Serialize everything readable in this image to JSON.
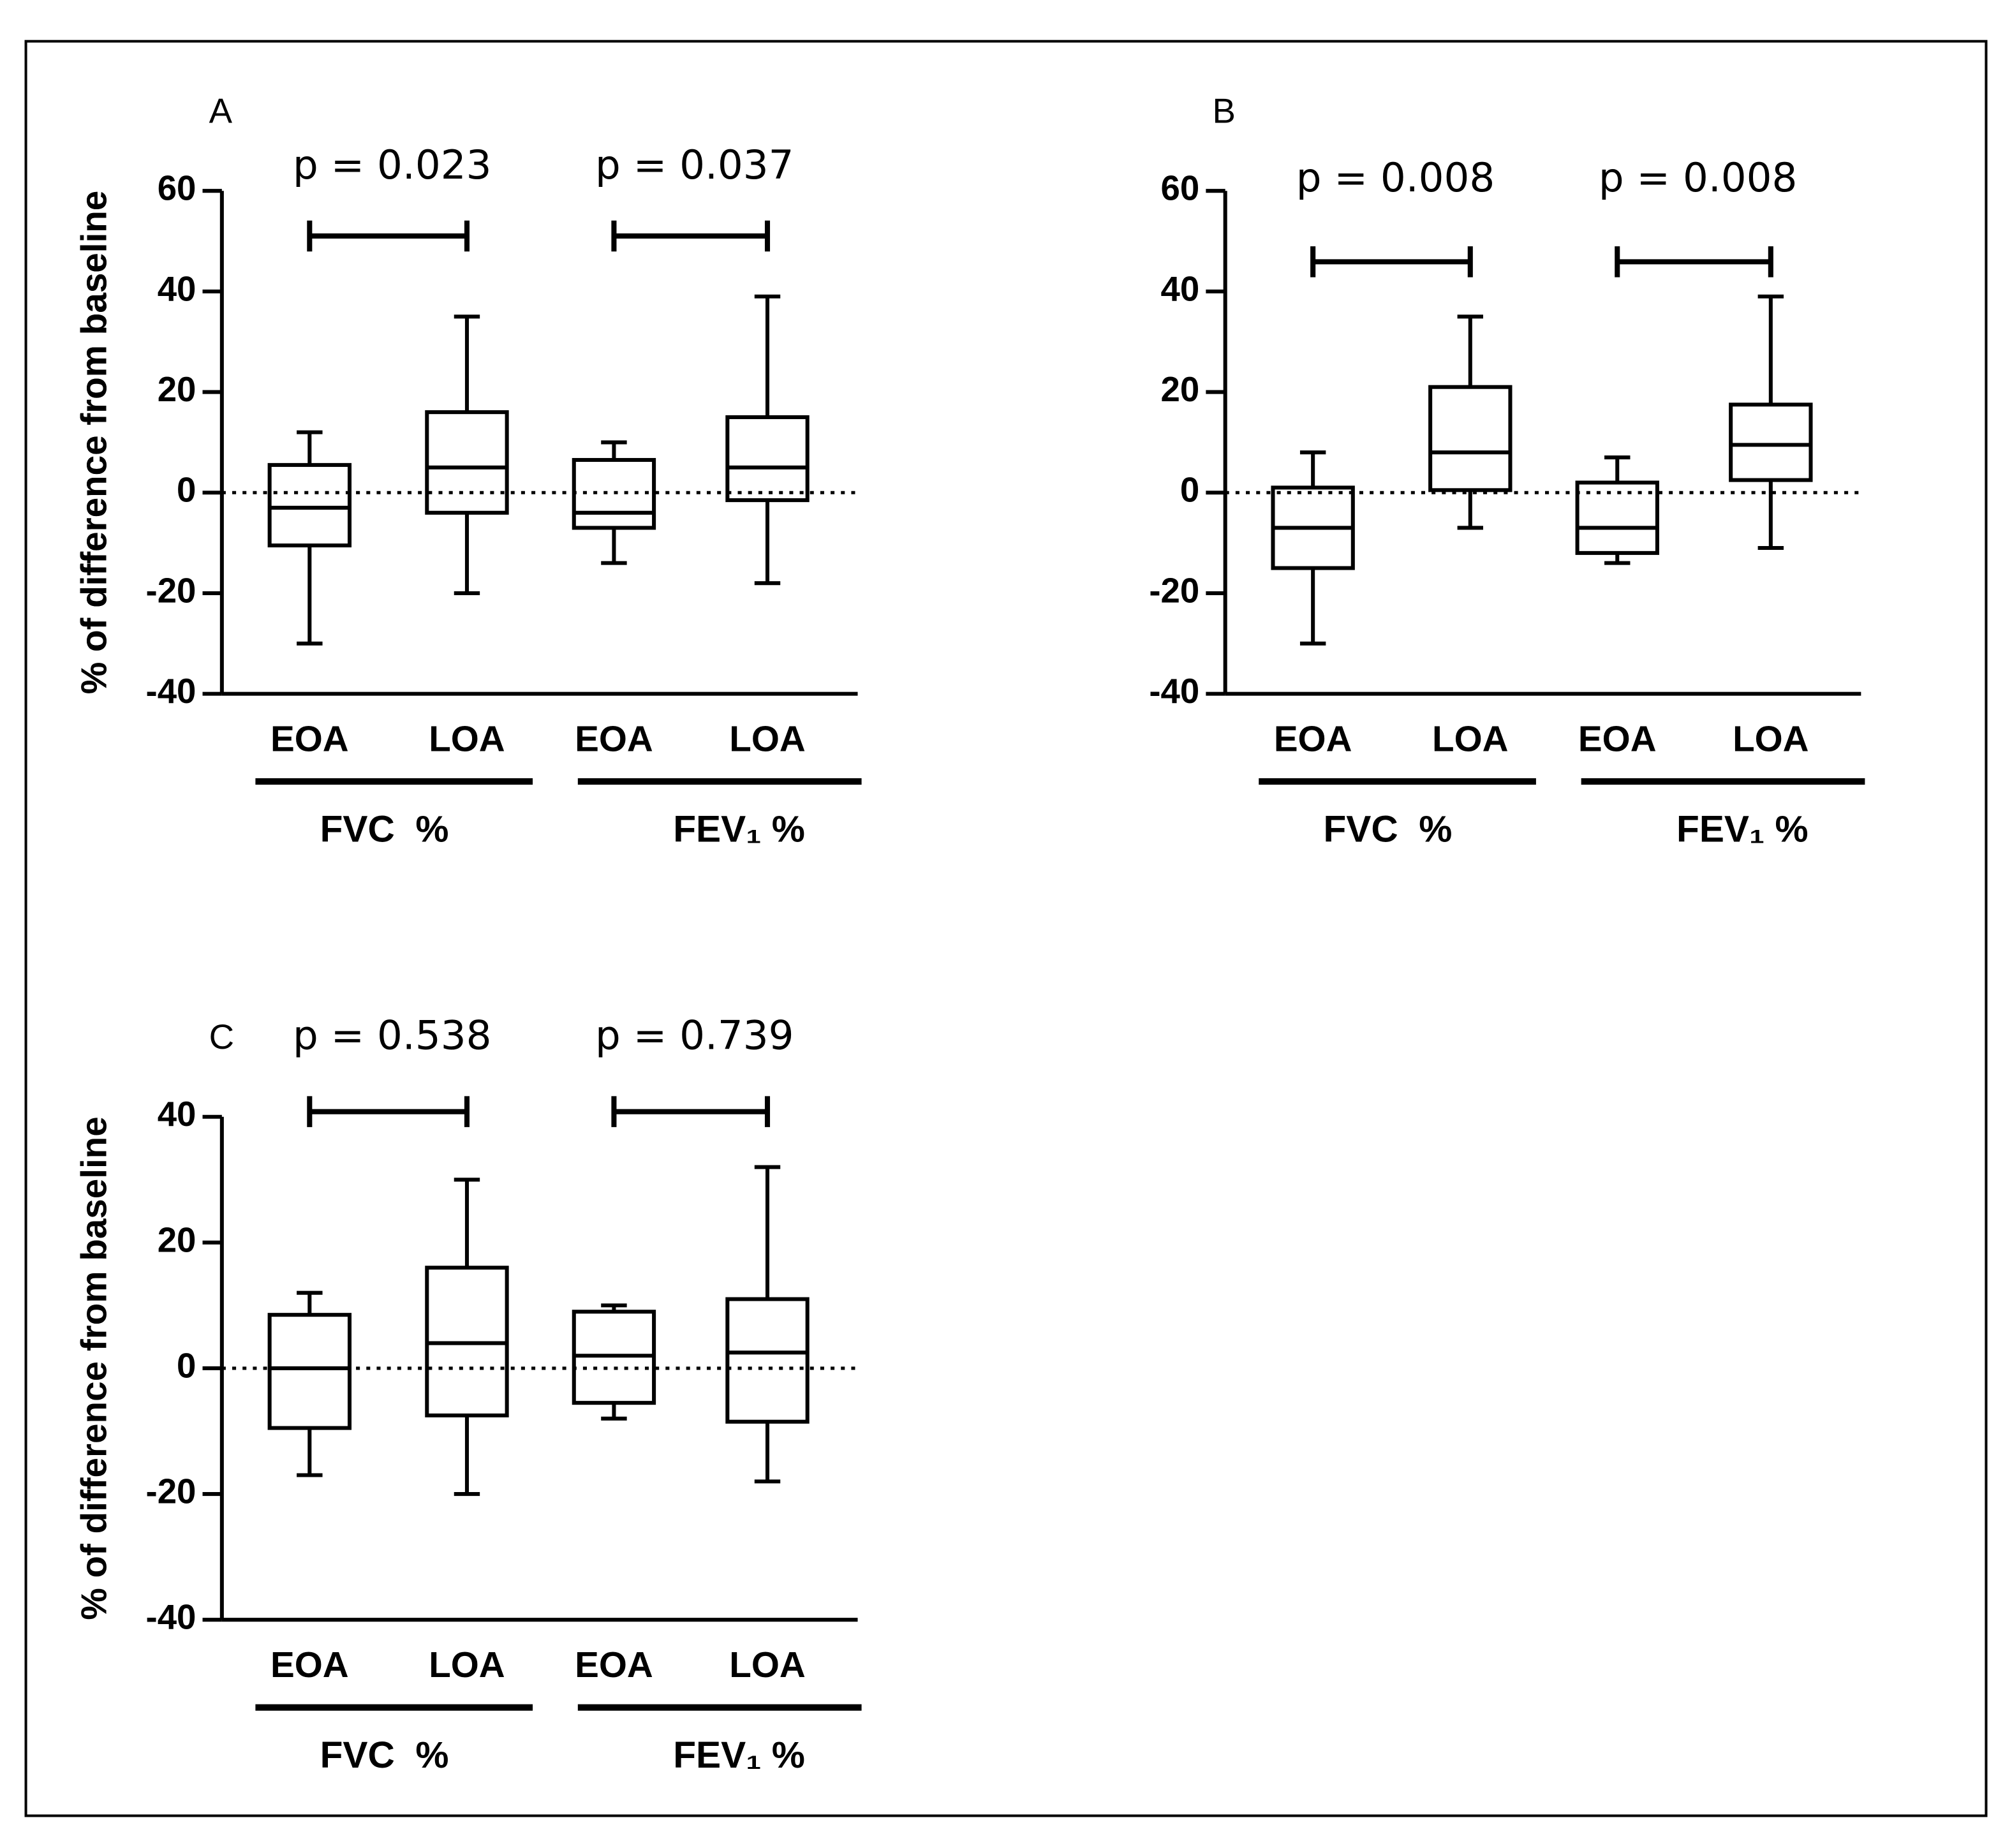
{
  "chart_data": [
    {
      "type": "box",
      "panel": "A",
      "ylabel": "% of difference from baseline",
      "categories": [
        "EOA",
        "LOA",
        "EOA",
        "LOA"
      ],
      "groups": [
        "FVC  %",
        "FEV₁ %"
      ],
      "annotations": [
        "p = 0.023",
        "p = 0.037"
      ],
      "boxes": [
        {
          "min": -30,
          "q1": -10.5,
          "median": -3,
          "q3": 5.5,
          "max": 12
        },
        {
          "min": -20,
          "q1": -4,
          "median": 5,
          "q3": 16,
          "max": 35
        },
        {
          "min": -14,
          "q1": -7,
          "median": -4,
          "q3": 6.5,
          "max": 10
        },
        {
          "min": -18,
          "q1": -1.5,
          "median": 5,
          "q3": 15,
          "max": 39
        }
      ],
      "ylim": [
        -40,
        60
      ],
      "yticks": [
        -40,
        -20,
        0,
        20,
        40,
        60
      ],
      "hline": 0,
      "color": "#000000"
    },
    {
      "type": "box",
      "panel": "B",
      "ylabel": "% of difference from baseline",
      "categories": [
        "EOA",
        "LOA",
        "EOA",
        "LOA"
      ],
      "groups": [
        "FVC  %",
        "FEV₁ %"
      ],
      "annotations": [
        "p = 0.008",
        "p = 0.008"
      ],
      "boxes": [
        {
          "min": -30,
          "q1": -15,
          "median": -7,
          "q3": 1,
          "max": 8
        },
        {
          "min": -7,
          "q1": 0.5,
          "median": 8,
          "q3": 21,
          "max": 35
        },
        {
          "min": -14,
          "q1": -12,
          "median": -7,
          "q3": 2,
          "max": 7
        },
        {
          "min": -11,
          "q1": 2.5,
          "median": 9.5,
          "q3": 17.5,
          "max": 39
        }
      ],
      "ylim": [
        -40,
        60
      ],
      "yticks": [
        -40,
        -20,
        0,
        20,
        40,
        60
      ],
      "hline": 0,
      "color": "#000000"
    },
    {
      "type": "box",
      "panel": "C",
      "ylabel": "% of difference from baseline",
      "categories": [
        "EOA",
        "LOA",
        "EOA",
        "LOA"
      ],
      "groups": [
        "FVC  %",
        "FEV₁ %"
      ],
      "annotations": [
        "p = 0.538",
        "p = 0.739"
      ],
      "boxes": [
        {
          "min": -17,
          "q1": -9.5,
          "median": 0,
          "q3": 8.5,
          "max": 12
        },
        {
          "min": -20,
          "q1": -7.5,
          "median": 4,
          "q3": 16,
          "max": 30
        },
        {
          "min": -8,
          "q1": -5.5,
          "median": 2,
          "q3": 9,
          "max": 10
        },
        {
          "min": -18,
          "q1": -8.5,
          "median": 2.5,
          "q3": 11,
          "max": 32
        }
      ],
      "ylim": [
        -40,
        40
      ],
      "yticks": [
        -40,
        -20,
        0,
        20,
        40
      ],
      "hline": 0,
      "color": "#000000"
    }
  ]
}
